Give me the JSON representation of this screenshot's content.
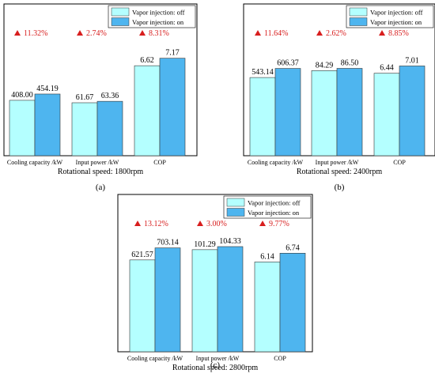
{
  "colors": {
    "off": "#b4ffff",
    "on": "#4eb5ef",
    "increase": "#d81e1e",
    "axis": "#000000"
  },
  "chart_data": [
    {
      "type": "bar",
      "panel": "(a)",
      "xlabel": "Rotational speed: 1800rpm",
      "categories": [
        "Cooling capacity /kW",
        "Input power /kW",
        "COP"
      ],
      "series": [
        {
          "name": "Vapor injection: off",
          "values": [
            408.0,
            61.67,
            6.62
          ],
          "labels": [
            "408.00",
            "61.67",
            "6.62"
          ]
        },
        {
          "name": "Vapor injection: on",
          "values": [
            454.19,
            63.36,
            7.17
          ],
          "labels": [
            "454.19",
            "63.36",
            "7.17"
          ]
        }
      ],
      "increase": [
        "11.32%",
        "2.74%",
        "8.31%"
      ],
      "legend": "top-right",
      "grid": false
    },
    {
      "type": "bar",
      "panel": "(b)",
      "xlabel": "Rotational speed: 2400rpm",
      "categories": [
        "Cooling capacity /kW",
        "Input power /kW",
        "COP"
      ],
      "series": [
        {
          "name": "Vapor injection: off",
          "values": [
            543.14,
            84.29,
            6.44
          ],
          "labels": [
            "543.14",
            "84.29",
            "6.44"
          ]
        },
        {
          "name": "Vapor injection: on",
          "values": [
            606.37,
            86.5,
            7.01
          ],
          "labels": [
            "606.37",
            "86.50",
            "7.01"
          ]
        }
      ],
      "increase": [
        "11.64%",
        "2.62%",
        "8.85%"
      ],
      "legend": "top-right",
      "grid": false
    },
    {
      "type": "bar",
      "panel": "(c)",
      "xlabel": "Rotational speed: 2800rpm",
      "categories": [
        "Cooling capacity /kW",
        "Input power /kW",
        "COP"
      ],
      "series": [
        {
          "name": "Vapor injection: off",
          "values": [
            621.57,
            101.29,
            6.14
          ],
          "labels": [
            "621.57",
            "101.29",
            "6.14"
          ]
        },
        {
          "name": "Vapor injection: on",
          "values": [
            703.14,
            104.33,
            6.74
          ],
          "labels": [
            "703.14",
            "104.33",
            "6.74"
          ]
        }
      ],
      "increase": [
        "13.12%",
        "3.00%",
        "9.77%"
      ],
      "legend": "top-right",
      "grid": false
    }
  ]
}
